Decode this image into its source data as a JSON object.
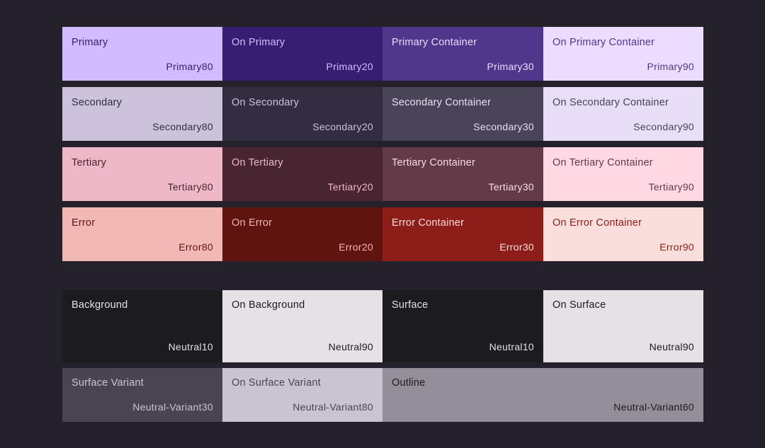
{
  "palette": {
    "rows": [
      [
        {
          "name": "Primary",
          "tone": "Primary80",
          "bg": "#d0bcff",
          "fg": "#381e72"
        },
        {
          "name": "On Primary",
          "tone": "Primary20",
          "bg": "#381e72",
          "fg": "#d0bcff"
        },
        {
          "name": "Primary Container",
          "tone": "Primary30",
          "bg": "#4f378b",
          "fg": "#eaddff"
        },
        {
          "name": "On Primary Container",
          "tone": "Primary90",
          "bg": "#eaddff",
          "fg": "#4f378b"
        }
      ],
      [
        {
          "name": "Secondary",
          "tone": "Secondary80",
          "bg": "#ccc2dc",
          "fg": "#332d41"
        },
        {
          "name": "On Secondary",
          "tone": "Secondary20",
          "bg": "#332d41",
          "fg": "#ccc2dc"
        },
        {
          "name": "Secondary Container",
          "tone": "Secondary30",
          "bg": "#4a4458",
          "fg": "#e8def8"
        },
        {
          "name": "On Secondary Container",
          "tone": "Secondary90",
          "bg": "#e8def8",
          "fg": "#4a4458"
        }
      ],
      [
        {
          "name": "Tertiary",
          "tone": "Tertiary80",
          "bg": "#efb8c8",
          "fg": "#492532"
        },
        {
          "name": "On Tertiary",
          "tone": "Tertiary20",
          "bg": "#492532",
          "fg": "#efb8c8"
        },
        {
          "name": "Tertiary Container",
          "tone": "Tertiary30",
          "bg": "#633b48",
          "fg": "#ffd8e4"
        },
        {
          "name": "On Tertiary Container",
          "tone": "Tertiary90",
          "bg": "#ffd8e4",
          "fg": "#633b48"
        }
      ],
      [
        {
          "name": "Error",
          "tone": "Error80",
          "bg": "#f2b8b5",
          "fg": "#601410"
        },
        {
          "name": "On Error",
          "tone": "Error20",
          "bg": "#601410",
          "fg": "#f2b8b5"
        },
        {
          "name": "Error Container",
          "tone": "Error30",
          "bg": "#8c1d18",
          "fg": "#f9dedc"
        },
        {
          "name": "On Error Container",
          "tone": "Error90",
          "bg": "#f9dedc",
          "fg": "#8c1d18"
        }
      ]
    ],
    "neutrals": [
      {
        "name": "Background",
        "tone": "Neutral10",
        "bg": "#1c1b1f",
        "fg": "#e6e1e5"
      },
      {
        "name": "On Background",
        "tone": "Neutral90",
        "bg": "#e6e1e5",
        "fg": "#1c1b1f"
      },
      {
        "name": "Surface",
        "tone": "Neutral10",
        "bg": "#1c1b1f",
        "fg": "#e6e1e5"
      },
      {
        "name": "On Surface",
        "tone": "Neutral90",
        "bg": "#e6e1e5",
        "fg": "#1c1b1f"
      }
    ],
    "variants": [
      {
        "name": "Surface Variant",
        "tone": "Neutral-Variant30",
        "bg": "#49454f",
        "fg": "#cac4d0"
      },
      {
        "name": "On Surface Variant",
        "tone": "Neutral-Variant80",
        "bg": "#cac4d0",
        "fg": "#49454f"
      },
      {
        "name": "Outline",
        "tone": "Neutral-Variant60",
        "bg": "#938f99",
        "fg": "#1c1b1f"
      }
    ]
  }
}
